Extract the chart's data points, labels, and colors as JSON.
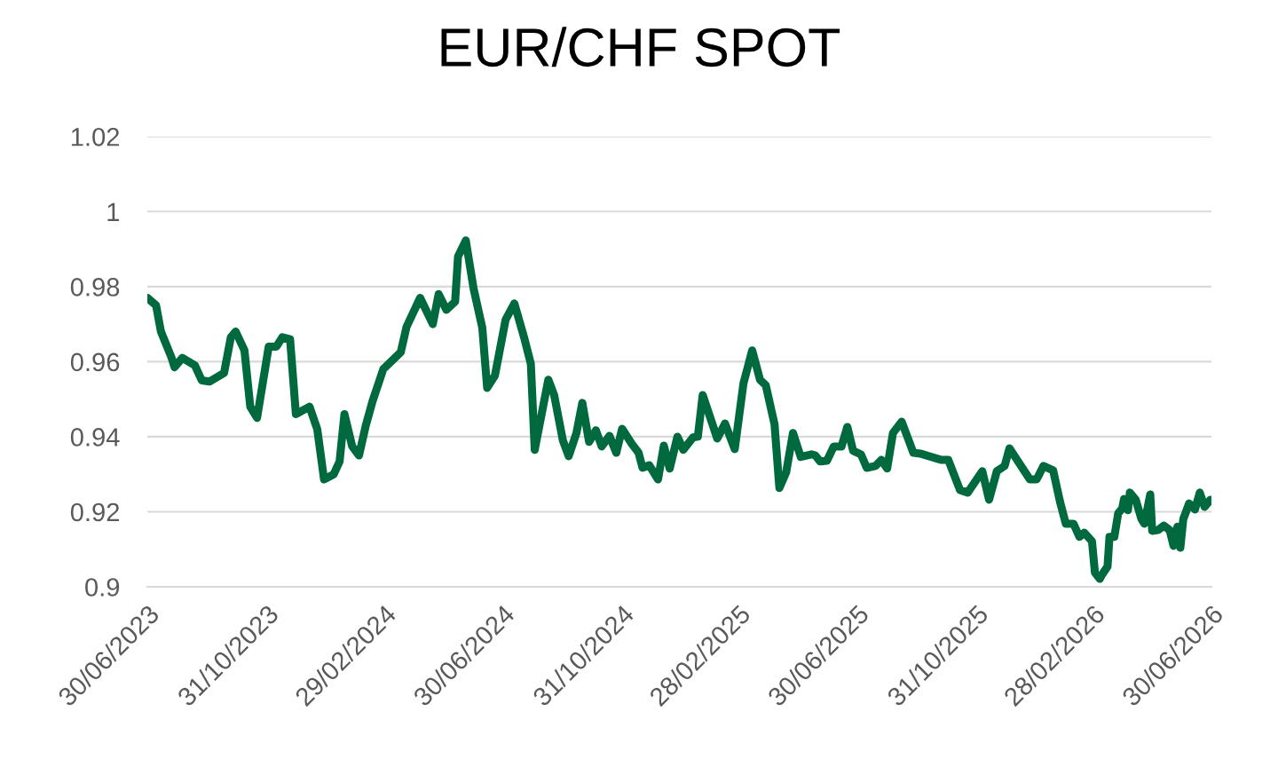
{
  "chart_data": {
    "type": "line",
    "title": "EUR/CHF SPOT",
    "x": [
      "2023-06-30",
      "2023-07-09",
      "2023-07-14",
      "2023-07-25",
      "2023-07-28",
      "2023-08-05",
      "2023-08-18",
      "2023-08-25",
      "2023-09-02",
      "2023-09-17",
      "2023-09-24",
      "2023-09-29",
      "2023-10-08",
      "2023-10-14",
      "2023-10-21",
      "2023-11-02",
      "2023-11-10",
      "2023-11-16",
      "2023-11-24",
      "2023-11-30",
      "2023-12-14",
      "2023-12-22",
      "2023-12-29",
      "2024-01-08",
      "2024-01-14",
      "2024-01-19",
      "2024-01-27",
      "2024-02-03",
      "2024-02-10",
      "2024-02-17",
      "2024-02-28",
      "2024-03-17",
      "2024-03-23",
      "2024-04-06",
      "2024-04-19",
      "2024-04-25",
      "2024-05-03",
      "2024-05-12",
      "2024-05-15",
      "2024-05-23",
      "2024-05-31",
      "2024-06-09",
      "2024-06-14",
      "2024-06-22",
      "2024-07-03",
      "2024-07-12",
      "2024-07-22",
      "2024-07-29",
      "2024-08-02",
      "2024-08-16",
      "2024-08-22",
      "2024-08-31",
      "2024-09-06",
      "2024-09-14",
      "2024-09-20",
      "2024-09-27",
      "2024-10-04",
      "2024-10-10",
      "2024-10-18",
      "2024-10-25",
      "2024-10-31",
      "2024-11-10",
      "2024-11-17",
      "2024-11-21",
      "2024-11-28",
      "2024-12-07",
      "2024-12-13",
      "2024-12-19",
      "2024-12-27",
      "2025-01-02",
      "2025-01-12",
      "2025-01-17",
      "2025-01-22",
      "2025-02-06",
      "2025-02-14",
      "2025-02-24",
      "2025-03-05",
      "2025-03-14",
      "2025-03-22",
      "2025-03-28",
      "2025-04-06",
      "2025-04-11",
      "2025-04-18",
      "2025-04-25",
      "2025-05-03",
      "2025-05-14",
      "2025-05-18",
      "2025-05-23",
      "2025-05-30",
      "2025-06-06",
      "2025-06-14",
      "2025-06-20",
      "2025-06-26",
      "2025-07-04",
      "2025-07-10",
      "2025-07-19",
      "2025-07-25",
      "2025-07-31",
      "2025-08-06",
      "2025-08-15",
      "2025-08-27",
      "2025-09-03",
      "2025-09-25",
      "2025-10-02",
      "2025-10-14",
      "2025-10-22",
      "2025-11-06",
      "2025-11-13",
      "2025-11-21",
      "2025-11-29",
      "2025-12-04",
      "2025-12-25",
      "2026-01-01",
      "2026-01-08",
      "2026-01-18",
      "2026-01-25",
      "2026-01-31",
      "2026-02-08",
      "2026-02-14",
      "2026-02-19",
      "2026-02-27",
      "2026-03-02",
      "2026-03-07",
      "2026-03-09",
      "2026-03-15",
      "2026-03-17",
      "2026-03-22",
      "2026-03-26",
      "2026-03-30",
      "2026-04-01",
      "2026-04-05",
      "2026-04-07",
      "2026-04-13",
      "2026-04-19",
      "2026-04-22",
      "2026-04-28",
      "2026-04-30",
      "2026-05-06",
      "2026-05-12",
      "2026-05-18",
      "2026-05-22",
      "2026-05-26",
      "2026-05-29",
      "2026-06-01",
      "2026-06-07",
      "2026-06-13",
      "2026-06-18",
      "2026-06-23",
      "2026-06-29"
    ],
    "series": [
      {
        "color": "#006a3e",
        "values": [
          0.977,
          0.975,
          0.968,
          0.961,
          0.9585,
          0.961,
          0.959,
          0.955,
          0.9547,
          0.957,
          0.9665,
          0.968,
          0.963,
          0.948,
          0.945,
          0.964,
          0.964,
          0.9665,
          0.966,
          0.946,
          0.948,
          0.942,
          0.9286,
          0.93,
          0.9334,
          0.946,
          0.9374,
          0.935,
          0.943,
          0.9495,
          0.958,
          0.9625,
          0.9693,
          0.977,
          0.97,
          0.978,
          0.9738,
          0.976,
          0.988,
          0.9923,
          0.9795,
          0.969,
          0.953,
          0.9563,
          0.9712,
          0.9755,
          0.9665,
          0.9594,
          0.9365,
          0.9552,
          0.9511,
          0.939,
          0.9348,
          0.941,
          0.949,
          0.9386,
          0.9417,
          0.9374,
          0.9402,
          0.9357,
          0.9421,
          0.9381,
          0.9357,
          0.9317,
          0.9324,
          0.9286,
          0.9376,
          0.9315,
          0.94,
          0.9365,
          0.9398,
          0.94,
          0.9511,
          0.9395,
          0.9435,
          0.9367,
          0.9542,
          0.963,
          0.9552,
          0.9537,
          0.9433,
          0.9263,
          0.9305,
          0.941,
          0.9346,
          0.9353,
          0.935,
          0.9334,
          0.9336,
          0.9374,
          0.9374,
          0.9426,
          0.9362,
          0.9353,
          0.9317,
          0.9322,
          0.9338,
          0.9315,
          0.941,
          0.944,
          0.9357,
          0.9355,
          0.9338,
          0.9338,
          0.9258,
          0.9251,
          0.9308,
          0.9232,
          0.9308,
          0.9322,
          0.9369,
          0.9286,
          0.9286,
          0.9322,
          0.931,
          0.9227,
          0.9168,
          0.9168,
          0.9133,
          0.9144,
          0.9121,
          0.9038,
          0.9021,
          0.9031,
          0.9054,
          0.9133,
          0.9133,
          0.9196,
          0.9208,
          0.9234,
          0.9204,
          0.9251,
          0.9232,
          0.918,
          0.9168,
          0.9246,
          0.9149,
          0.9151,
          0.9163,
          0.9151,
          0.9109,
          0.916,
          0.9104,
          0.918,
          0.9222,
          0.9206,
          0.9251,
          0.9213,
          0.9232
        ]
      }
    ],
    "xlim": [
      "2023-06-30",
      "2026-06-30"
    ],
    "xticks": [
      {
        "value": "2023-06-30",
        "label": "30/06/2023"
      },
      {
        "value": "2023-10-31",
        "label": "31/10/2023"
      },
      {
        "value": "2024-02-29",
        "label": "29/02/2024"
      },
      {
        "value": "2024-06-30",
        "label": "30/06/2024"
      },
      {
        "value": "2024-10-31",
        "label": "31/10/2024"
      },
      {
        "value": "2025-02-28",
        "label": "28/02/2025"
      },
      {
        "value": "2025-06-30",
        "label": "30/06/2025"
      },
      {
        "value": "2025-10-31",
        "label": "31/10/2025"
      },
      {
        "value": "2026-02-28",
        "label": "28/02/2026"
      },
      {
        "value": "2026-06-30",
        "label": "30/06/2026"
      }
    ],
    "ylim": [
      0.9,
      1.02
    ],
    "yticks": [
      0.9,
      0.92,
      0.94,
      0.96,
      0.98,
      1,
      1.02
    ],
    "grid": "y",
    "line_style": "solid"
  }
}
